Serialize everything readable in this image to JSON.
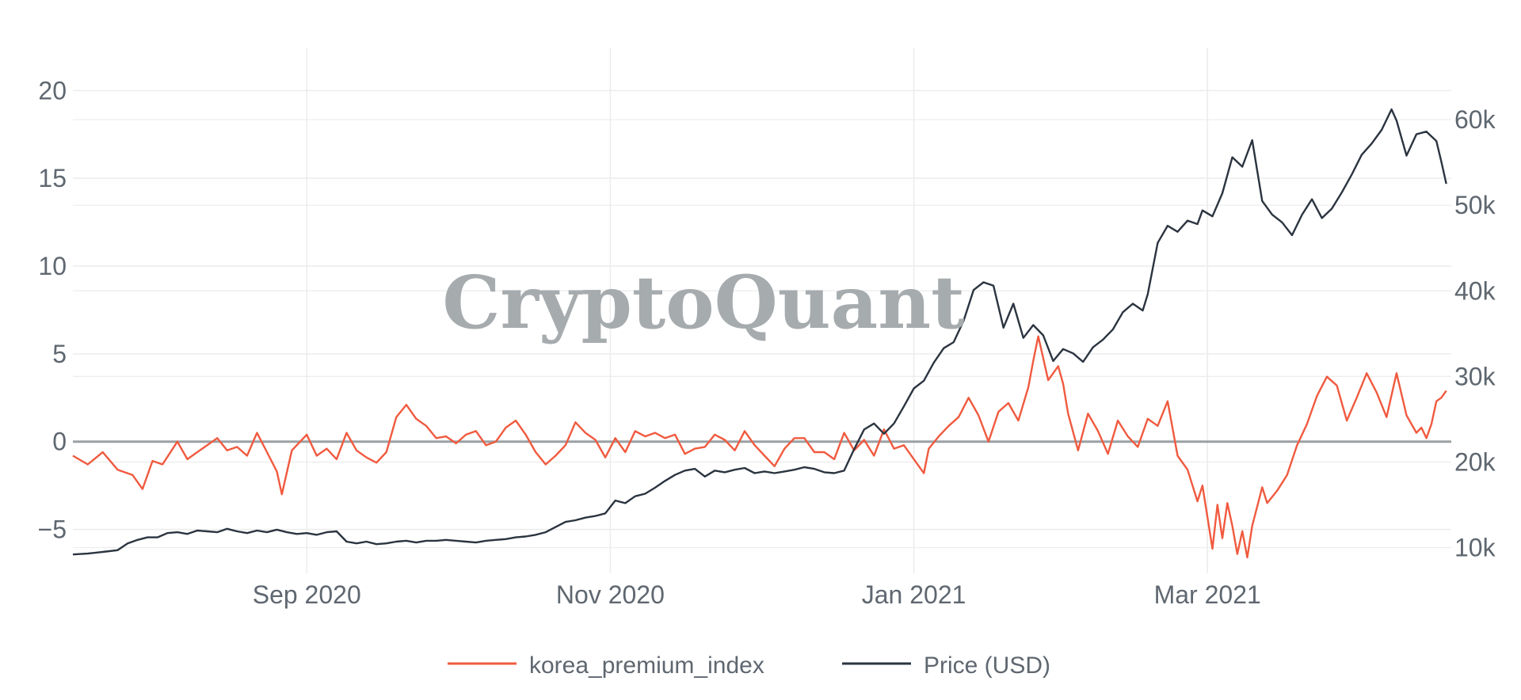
{
  "watermark": "CryptoQuant",
  "colors": {
    "premium": "#f05a3f",
    "price": "#2b3440",
    "zero_line": "#9aa0a4",
    "grid": "#ececec",
    "tick_text": "#5f6770"
  },
  "chart_data": {
    "type": "line",
    "title": "",
    "xlabel": "",
    "ylabel": "",
    "x_ticks": [
      {
        "label": "Sep 2020",
        "day": 47
      },
      {
        "label": "Nov 2020",
        "day": 108
      },
      {
        "label": "Jan 2021",
        "day": 169
      },
      {
        "label": "Mar 2021",
        "day": 228
      }
    ],
    "x_range_days": [
      0,
      277
    ],
    "x_start_date": "2020-07-15",
    "y_left": {
      "range": [
        -7.5,
        22
      ],
      "ticks": [
        -5,
        0,
        5,
        10,
        15,
        20
      ],
      "tick_labels": [
        "−5",
        "0",
        "5",
        "10",
        "15",
        "20"
      ]
    },
    "y_right": {
      "range": [
        7000,
        67500
      ],
      "ticks": [
        10000,
        20000,
        30000,
        40000,
        50000,
        60000
      ],
      "tick_labels": [
        "10k",
        "20k",
        "30k",
        "40k",
        "50k",
        "60k"
      ]
    },
    "zero_line": 0,
    "legend": [
      "korea_premium_index",
      "Price (USD)"
    ],
    "series": [
      {
        "name": "korea_premium_index",
        "axis": "left",
        "points": [
          [
            0,
            -0.8
          ],
          [
            3,
            -1.3
          ],
          [
            6,
            -0.6
          ],
          [
            9,
            -1.6
          ],
          [
            12,
            -1.9
          ],
          [
            14,
            -2.7
          ],
          [
            16,
            -1.1
          ],
          [
            18,
            -1.3
          ],
          [
            21,
            0.0
          ],
          [
            23,
            -1.0
          ],
          [
            26,
            -0.4
          ],
          [
            29,
            0.2
          ],
          [
            31,
            -0.5
          ],
          [
            33,
            -0.3
          ],
          [
            35,
            -0.8
          ],
          [
            37,
            0.5
          ],
          [
            39,
            -0.6
          ],
          [
            41,
            -1.7
          ],
          [
            42,
            -3.0
          ],
          [
            44,
            -0.5
          ],
          [
            47,
            0.4
          ],
          [
            49,
            -0.8
          ],
          [
            51,
            -0.4
          ],
          [
            53,
            -1.0
          ],
          [
            55,
            0.5
          ],
          [
            57,
            -0.5
          ],
          [
            59,
            -0.9
          ],
          [
            61,
            -1.2
          ],
          [
            63,
            -0.6
          ],
          [
            65,
            1.4
          ],
          [
            67,
            2.1
          ],
          [
            69,
            1.3
          ],
          [
            71,
            0.9
          ],
          [
            73,
            0.2
          ],
          [
            75,
            0.3
          ],
          [
            77,
            -0.1
          ],
          [
            79,
            0.4
          ],
          [
            81,
            0.6
          ],
          [
            83,
            -0.2
          ],
          [
            85,
            0.0
          ],
          [
            87,
            0.8
          ],
          [
            89,
            1.2
          ],
          [
            91,
            0.4
          ],
          [
            93,
            -0.6
          ],
          [
            95,
            -1.3
          ],
          [
            97,
            -0.8
          ],
          [
            99,
            -0.2
          ],
          [
            101,
            1.1
          ],
          [
            103,
            0.5
          ],
          [
            105,
            0.1
          ],
          [
            107,
            -0.9
          ],
          [
            109,
            0.2
          ],
          [
            111,
            -0.6
          ],
          [
            113,
            0.6
          ],
          [
            115,
            0.3
          ],
          [
            117,
            0.5
          ],
          [
            119,
            0.2
          ],
          [
            121,
            0.4
          ],
          [
            123,
            -0.7
          ],
          [
            125,
            -0.4
          ],
          [
            127,
            -0.3
          ],
          [
            129,
            0.4
          ],
          [
            131,
            0.1
          ],
          [
            133,
            -0.5
          ],
          [
            135,
            0.6
          ],
          [
            137,
            -0.2
          ],
          [
            139,
            -0.8
          ],
          [
            141,
            -1.4
          ],
          [
            143,
            -0.4
          ],
          [
            145,
            0.2
          ],
          [
            147,
            0.2
          ],
          [
            149,
            -0.6
          ],
          [
            151,
            -0.6
          ],
          [
            153,
            -1.0
          ],
          [
            155,
            0.5
          ],
          [
            157,
            -0.5
          ],
          [
            159,
            0.1
          ],
          [
            161,
            -0.8
          ],
          [
            163,
            0.7
          ],
          [
            165,
            -0.4
          ],
          [
            167,
            -0.2
          ],
          [
            169,
            -1.0
          ],
          [
            171,
            -1.8
          ],
          [
            172,
            -0.4
          ],
          [
            174,
            0.3
          ],
          [
            176,
            0.9
          ],
          [
            178,
            1.4
          ],
          [
            180,
            2.5
          ],
          [
            182,
            1.5
          ],
          [
            184,
            0.0
          ],
          [
            186,
            1.7
          ],
          [
            188,
            2.2
          ],
          [
            190,
            1.2
          ],
          [
            192,
            3.1
          ],
          [
            193,
            4.6
          ],
          [
            194,
            6.0
          ],
          [
            196,
            3.5
          ],
          [
            198,
            4.3
          ],
          [
            199,
            3.3
          ],
          [
            200,
            1.6
          ],
          [
            202,
            -0.5
          ],
          [
            204,
            1.6
          ],
          [
            206,
            0.6
          ],
          [
            208,
            -0.7
          ],
          [
            210,
            1.2
          ],
          [
            212,
            0.3
          ],
          [
            214,
            -0.3
          ],
          [
            216,
            1.3
          ],
          [
            218,
            0.9
          ],
          [
            220,
            2.3
          ],
          [
            222,
            -0.8
          ],
          [
            224,
            -1.6
          ],
          [
            226,
            -3.4
          ],
          [
            227,
            -2.5
          ],
          [
            228,
            -4.3
          ],
          [
            229,
            -6.1
          ],
          [
            230,
            -3.6
          ],
          [
            231,
            -5.5
          ],
          [
            232,
            -3.5
          ],
          [
            233,
            -4.8
          ],
          [
            234,
            -6.4
          ],
          [
            235,
            -5.1
          ],
          [
            236,
            -6.6
          ],
          [
            237,
            -4.8
          ],
          [
            239,
            -2.6
          ],
          [
            240,
            -3.5
          ],
          [
            242,
            -2.8
          ],
          [
            244,
            -1.9
          ],
          [
            246,
            -0.2
          ],
          [
            248,
            1.0
          ],
          [
            250,
            2.6
          ],
          [
            252,
            3.7
          ],
          [
            254,
            3.2
          ],
          [
            256,
            1.2
          ],
          [
            258,
            2.5
          ],
          [
            260,
            3.9
          ],
          [
            262,
            2.8
          ],
          [
            264,
            1.4
          ],
          [
            266,
            3.9
          ],
          [
            268,
            1.5
          ],
          [
            270,
            0.5
          ],
          [
            271,
            0.8
          ],
          [
            272,
            0.2
          ],
          [
            273,
            1.0
          ],
          [
            274,
            2.3
          ],
          [
            275,
            2.5
          ],
          [
            276,
            2.9
          ]
        ]
      },
      {
        "name": "Price (USD)",
        "axis": "right",
        "points": [
          [
            0,
            9200
          ],
          [
            3,
            9300
          ],
          [
            6,
            9500
          ],
          [
            9,
            9700
          ],
          [
            11,
            10500
          ],
          [
            13,
            10900
          ],
          [
            15,
            11200
          ],
          [
            17,
            11200
          ],
          [
            19,
            11700
          ],
          [
            21,
            11800
          ],
          [
            23,
            11600
          ],
          [
            25,
            12000
          ],
          [
            27,
            11900
          ],
          [
            29,
            11800
          ],
          [
            31,
            12200
          ],
          [
            33,
            11900
          ],
          [
            35,
            11700
          ],
          [
            37,
            12000
          ],
          [
            39,
            11800
          ],
          [
            41,
            12100
          ],
          [
            43,
            11800
          ],
          [
            45,
            11600
          ],
          [
            47,
            11700
          ],
          [
            49,
            11500
          ],
          [
            51,
            11800
          ],
          [
            53,
            11900
          ],
          [
            55,
            10700
          ],
          [
            57,
            10500
          ],
          [
            59,
            10700
          ],
          [
            61,
            10400
          ],
          [
            63,
            10500
          ],
          [
            65,
            10700
          ],
          [
            67,
            10800
          ],
          [
            69,
            10600
          ],
          [
            71,
            10800
          ],
          [
            73,
            10800
          ],
          [
            75,
            10900
          ],
          [
            77,
            10800
          ],
          [
            79,
            10700
          ],
          [
            81,
            10600
          ],
          [
            83,
            10800
          ],
          [
            85,
            10900
          ],
          [
            87,
            11000
          ],
          [
            89,
            11200
          ],
          [
            91,
            11300
          ],
          [
            93,
            11500
          ],
          [
            95,
            11800
          ],
          [
            97,
            12400
          ],
          [
            99,
            13000
          ],
          [
            101,
            13200
          ],
          [
            103,
            13500
          ],
          [
            105,
            13700
          ],
          [
            107,
            14000
          ],
          [
            109,
            15500
          ],
          [
            111,
            15200
          ],
          [
            113,
            16000
          ],
          [
            115,
            16300
          ],
          [
            117,
            17000
          ],
          [
            119,
            17800
          ],
          [
            121,
            18500
          ],
          [
            123,
            19000
          ],
          [
            125,
            19200
          ],
          [
            127,
            18300
          ],
          [
            129,
            19000
          ],
          [
            131,
            18800
          ],
          [
            133,
            19100
          ],
          [
            135,
            19300
          ],
          [
            137,
            18700
          ],
          [
            139,
            18900
          ],
          [
            141,
            18700
          ],
          [
            143,
            18900
          ],
          [
            145,
            19100
          ],
          [
            147,
            19400
          ],
          [
            149,
            19200
          ],
          [
            151,
            18800
          ],
          [
            153,
            18700
          ],
          [
            155,
            19000
          ],
          [
            157,
            21500
          ],
          [
            159,
            23800
          ],
          [
            161,
            24500
          ],
          [
            163,
            23300
          ],
          [
            165,
            24500
          ],
          [
            167,
            26500
          ],
          [
            169,
            28600
          ],
          [
            171,
            29500
          ],
          [
            173,
            31600
          ],
          [
            175,
            33300
          ],
          [
            177,
            34000
          ],
          [
            179,
            36500
          ],
          [
            181,
            40100
          ],
          [
            183,
            41000
          ],
          [
            185,
            40600
          ],
          [
            187,
            35700
          ],
          [
            189,
            38500
          ],
          [
            191,
            34500
          ],
          [
            193,
            36000
          ],
          [
            195,
            34800
          ],
          [
            197,
            31800
          ],
          [
            199,
            33200
          ],
          [
            201,
            32700
          ],
          [
            203,
            31700
          ],
          [
            205,
            33400
          ],
          [
            207,
            34300
          ],
          [
            209,
            35500
          ],
          [
            211,
            37500
          ],
          [
            213,
            38500
          ],
          [
            215,
            37700
          ],
          [
            216,
            39600
          ],
          [
            218,
            45600
          ],
          [
            220,
            47600
          ],
          [
            222,
            46900
          ],
          [
            224,
            48200
          ],
          [
            226,
            47800
          ],
          [
            227,
            49400
          ],
          [
            229,
            48700
          ],
          [
            231,
            51400
          ],
          [
            233,
            55600
          ],
          [
            235,
            54500
          ],
          [
            237,
            57600
          ],
          [
            239,
            50500
          ],
          [
            241,
            48900
          ],
          [
            243,
            48000
          ],
          [
            245,
            46500
          ],
          [
            247,
            48900
          ],
          [
            249,
            50700
          ],
          [
            251,
            48500
          ],
          [
            253,
            49600
          ],
          [
            255,
            51500
          ],
          [
            257,
            53600
          ],
          [
            259,
            55900
          ],
          [
            261,
            57200
          ],
          [
            263,
            58800
          ],
          [
            265,
            61200
          ],
          [
            266,
            59900
          ],
          [
            268,
            55800
          ],
          [
            270,
            58300
          ],
          [
            272,
            58600
          ],
          [
            274,
            57500
          ],
          [
            275,
            55100
          ],
          [
            276,
            52500
          ]
        ]
      }
    ]
  }
}
